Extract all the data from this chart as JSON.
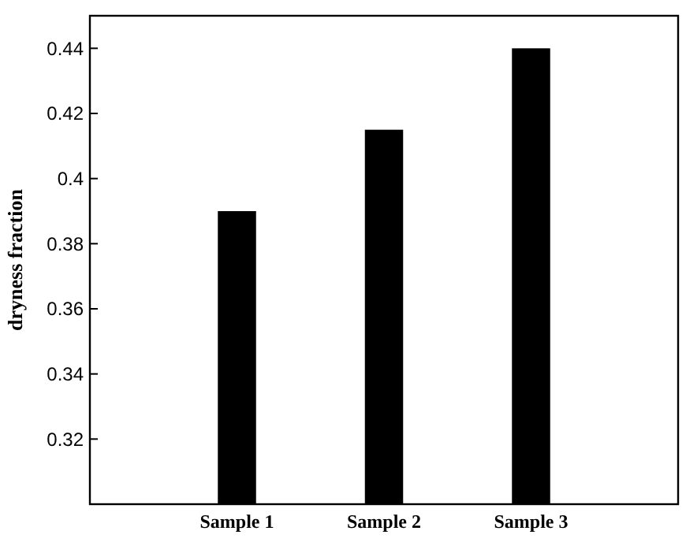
{
  "chart_data": {
    "type": "bar",
    "ylabel": "dryness fraction",
    "categories": [
      null,
      "Sample 1",
      "Sample 2",
      "Sample 3",
      null
    ],
    "values": [
      null,
      0.39,
      0.415,
      0.44,
      null
    ],
    "color": "#000000",
    "ylim": [
      0.3,
      0.45
    ],
    "yticks": [
      0.32,
      0.34,
      0.36,
      0.38,
      0.4,
      0.42,
      0.44
    ],
    "grid": false
  }
}
